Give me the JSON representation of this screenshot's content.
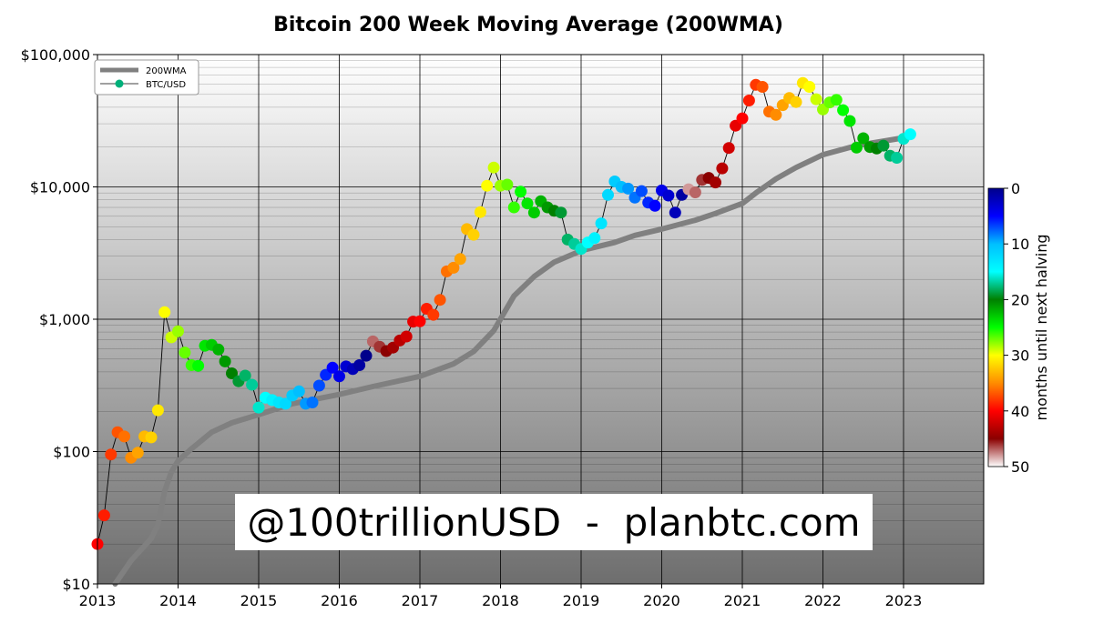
{
  "chart_data": {
    "type": "scatter",
    "title": "Bitcoin 200 Week Moving Average (200WMA)",
    "xlabel": "",
    "ylabel": "",
    "y_scale": "log",
    "ylim": [
      10,
      100000
    ],
    "xlim": [
      2013,
      2024
    ],
    "x_tick_labels": [
      "2013",
      "2014",
      "2015",
      "2016",
      "2017",
      "2018",
      "2019",
      "2020",
      "2021",
      "2022",
      "2023"
    ],
    "y_tick_labels": [
      "$10",
      "$100",
      "$1,000",
      "$10,000",
      "$100,000"
    ],
    "legend": {
      "placement": "top-left",
      "entries": [
        "200WMA",
        "BTC/USD"
      ]
    },
    "colorbar": {
      "label": "months until next halving",
      "range": [
        0,
        50
      ],
      "tick_labels": [
        "0",
        "10",
        "20",
        "30",
        "40",
        "50"
      ],
      "colors": [
        "#00008b",
        "#0000ff",
        "#00bfff",
        "#00ffff",
        "#008000",
        "#00ff00",
        "#ffff00",
        "#ff8c00",
        "#ff0000",
        "#8b0000",
        "#ffffff"
      ]
    },
    "watermark": "@100trillionUSD  -  planbtc.com",
    "grid": true,
    "series": [
      {
        "name": "200WMA",
        "color": "#808080",
        "x": [
          "2013-03-20",
          "2013-06-01",
          "2013-09-01",
          "2013-10-01",
          "2013-11-01",
          "2013-12-01",
          "2014-01-01",
          "2014-03-01",
          "2014-06-01",
          "2014-09-01",
          "2015-01-01",
          "2015-06-01",
          "2016-01-01",
          "2016-06-01",
          "2017-01-01",
          "2017-06-01",
          "2017-09-01",
          "2017-12-01",
          "2018-03-01",
          "2018-06-01",
          "2018-09-01",
          "2019-01-01",
          "2019-06-01",
          "2019-09-01",
          "2020-01-01",
          "2020-06-01",
          "2020-09-01",
          "2021-01-01",
          "2021-03-01",
          "2021-06-01",
          "2021-09-01",
          "2022-01-01",
          "2022-06-01",
          "2023-01-01",
          "2023-02-01"
        ],
        "y": [
          10,
          15,
          22,
          28,
          50,
          70,
          85,
          105,
          140,
          165,
          190,
          230,
          270,
          310,
          370,
          460,
          570,
          820,
          1500,
          2100,
          2700,
          3300,
          3800,
          4300,
          4800,
          5600,
          6300,
          7500,
          9000,
          11500,
          14000,
          17500,
          20500,
          23500,
          24000
        ]
      },
      {
        "name": "BTC/USD",
        "x": [
          "2013-01-01",
          "2013-02-01",
          "2013-03-01",
          "2013-04-01",
          "2013-05-01",
          "2013-06-01",
          "2013-07-01",
          "2013-08-01",
          "2013-09-01",
          "2013-10-01",
          "2013-11-01",
          "2013-12-01",
          "2014-01-01",
          "2014-02-01",
          "2014-03-01",
          "2014-04-01",
          "2014-05-01",
          "2014-06-01",
          "2014-07-01",
          "2014-08-01",
          "2014-09-01",
          "2014-10-01",
          "2014-11-01",
          "2014-12-01",
          "2015-01-01",
          "2015-02-01",
          "2015-03-01",
          "2015-04-01",
          "2015-05-01",
          "2015-06-01",
          "2015-07-01",
          "2015-08-01",
          "2015-09-01",
          "2015-10-01",
          "2015-11-01",
          "2015-12-01",
          "2016-01-01",
          "2016-02-01",
          "2016-03-01",
          "2016-04-01",
          "2016-05-01",
          "2016-06-01",
          "2016-07-01",
          "2016-08-01",
          "2016-09-01",
          "2016-10-01",
          "2016-11-01",
          "2016-12-01",
          "2017-01-01",
          "2017-02-01",
          "2017-03-01",
          "2017-04-01",
          "2017-05-01",
          "2017-06-01",
          "2017-07-01",
          "2017-08-01",
          "2017-09-01",
          "2017-10-01",
          "2017-11-01",
          "2017-12-01",
          "2018-01-01",
          "2018-02-01",
          "2018-03-01",
          "2018-04-01",
          "2018-05-01",
          "2018-06-01",
          "2018-07-01",
          "2018-08-01",
          "2018-09-01",
          "2018-10-01",
          "2018-11-01",
          "2018-12-01",
          "2019-01-01",
          "2019-02-01",
          "2019-03-01",
          "2019-04-01",
          "2019-05-01",
          "2019-06-01",
          "2019-07-01",
          "2019-08-01",
          "2019-09-01",
          "2019-10-01",
          "2019-11-01",
          "2019-12-01",
          "2020-01-01",
          "2020-02-01",
          "2020-03-01",
          "2020-04-01",
          "2020-05-01",
          "2020-06-01",
          "2020-07-01",
          "2020-08-01",
          "2020-09-01",
          "2020-10-01",
          "2020-11-01",
          "2020-12-01",
          "2021-01-01",
          "2021-02-01",
          "2021-03-01",
          "2021-04-01",
          "2021-05-01",
          "2021-06-01",
          "2021-07-01",
          "2021-08-01",
          "2021-09-01",
          "2021-10-01",
          "2021-11-01",
          "2021-12-01",
          "2022-01-01",
          "2022-02-01",
          "2022-03-01",
          "2022-04-01",
          "2022-05-01",
          "2022-06-01",
          "2022-07-01",
          "2022-08-01",
          "2022-09-01",
          "2022-10-01",
          "2022-11-01",
          "2022-12-01",
          "2023-01-01",
          "2023-02-01"
        ],
        "y": [
          20,
          33,
          95,
          140,
          130,
          90,
          98,
          130,
          128,
          205,
          1130,
          730,
          810,
          560,
          450,
          445,
          630,
          640,
          590,
          480,
          390,
          340,
          375,
          320,
          215,
          255,
          245,
          235,
          230,
          265,
          285,
          230,
          235,
          315,
          380,
          430,
          370,
          440,
          420,
          450,
          530,
          680,
          620,
          575,
          610,
          690,
          740,
          960,
          965,
          1200,
          1080,
          1400,
          2300,
          2450,
          2850,
          4800,
          4350,
          6450,
          10200,
          14000,
          10200,
          10400,
          7000,
          9200,
          7500,
          6400,
          7800,
          7000,
          6600,
          6400,
          4000,
          3700,
          3400,
          3800,
          4100,
          5300,
          8700,
          11000,
          10000,
          9700,
          8300,
          9300,
          7600,
          7200,
          9400,
          8600,
          6400,
          8700,
          9600,
          9100,
          11300,
          11700,
          10800,
          13800,
          19700,
          29000,
          33000,
          45000,
          59000,
          57000,
          37000,
          35000,
          41500,
          47000,
          43800,
          61000,
          57000,
          46000,
          38500,
          43500,
          45500,
          38000,
          31500,
          19800,
          23300,
          20000,
          19500,
          20500,
          17200,
          16600,
          23100,
          25000
        ],
        "months_until_halving": [
          40,
          39,
          38,
          37,
          36,
          35,
          34,
          33,
          32,
          31,
          30,
          29,
          28,
          27,
          26,
          25,
          24,
          23,
          22,
          21,
          20,
          19,
          18,
          17,
          16,
          15,
          14,
          13,
          12,
          11,
          10,
          9,
          8,
          7,
          6,
          5,
          4,
          3,
          2,
          1,
          0,
          47,
          46,
          45,
          44,
          43,
          42,
          41,
          40,
          39,
          38,
          37,
          36,
          35,
          34,
          33,
          32,
          31,
          30,
          29,
          28,
          27,
          26,
          25,
          24,
          23,
          22,
          21,
          20,
          19,
          18,
          17,
          16,
          15,
          14,
          13,
          12,
          11,
          10,
          9,
          8,
          7,
          6,
          5,
          4,
          3,
          2,
          1,
          48,
          47,
          46,
          45,
          44,
          43,
          42,
          41,
          40,
          39,
          38,
          37,
          36,
          35,
          34,
          33,
          32,
          31,
          30,
          29,
          28,
          27,
          26,
          25,
          24,
          23,
          22,
          21,
          20,
          19,
          18,
          17,
          16,
          15
        ]
      }
    ]
  }
}
